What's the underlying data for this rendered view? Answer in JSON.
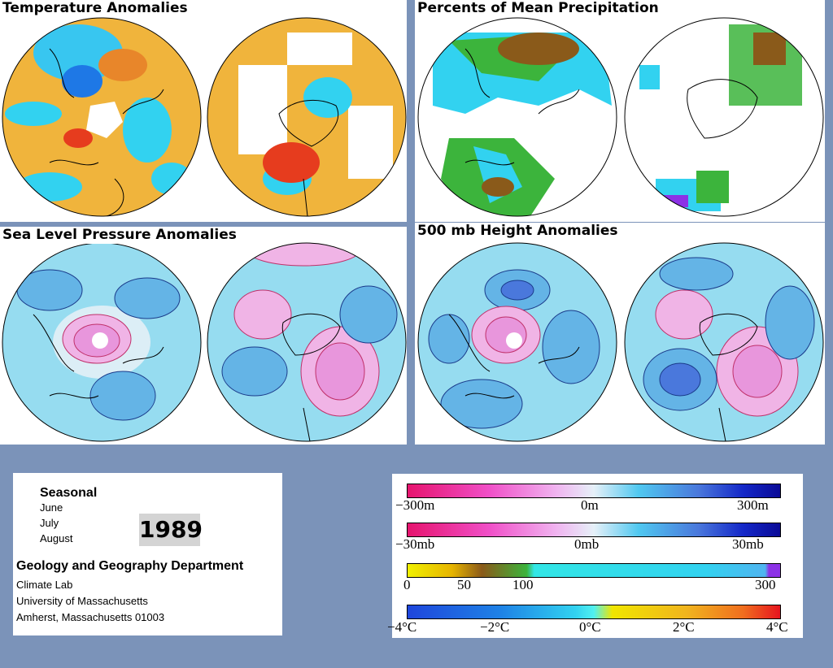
{
  "panels": {
    "temperature": {
      "title": "Temperature Anomalies"
    },
    "precip": {
      "title": "Percents of Mean Precipitation"
    },
    "slp": {
      "title": "Sea Level Pressure Anomalies"
    },
    "height": {
      "title": "500 mb Height Anomalies"
    }
  },
  "info": {
    "period": "Seasonal",
    "months": [
      "June",
      "July",
      "August"
    ],
    "year": "1989",
    "department": "Geology and Geography Department",
    "address": [
      "Climate Lab",
      "University of Massachusetts",
      "Amherst, Massachusetts 01003"
    ]
  },
  "legends": {
    "height": {
      "labels": [
        "−300m",
        "0m",
        "300m"
      ]
    },
    "pressure": {
      "labels": [
        "−30mb",
        "0mb",
        "30mb"
      ]
    },
    "precip": {
      "labels": [
        "0",
        "50",
        "100",
        "300"
      ]
    },
    "temp": {
      "labels": [
        "−4°C",
        "−2°C",
        "0°C",
        "2°C",
        "4°C"
      ]
    }
  },
  "colors": {
    "background": "#7b93b9",
    "warm_anomaly": "#f0b43c",
    "cool_anomaly": "#32d2f0",
    "contour_positive": "#c0306a",
    "contour_negative": "#1a3a8a",
    "dry": "#8a5a1a",
    "wet": "#3cb43c"
  }
}
